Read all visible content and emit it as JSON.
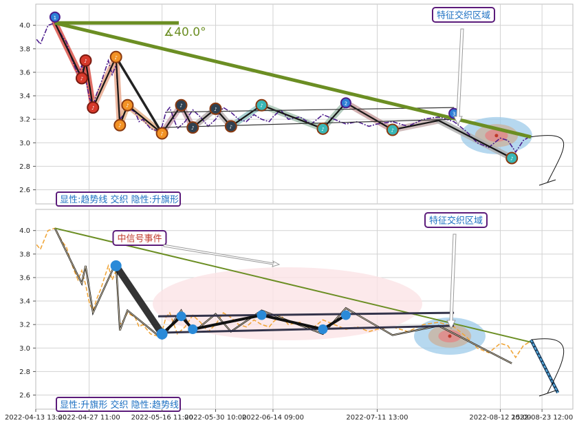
{
  "chart_data": [
    {
      "type": "line",
      "ylim": [
        2.48,
        4.18
      ],
      "yticks": [
        2.6,
        2.8,
        3.0,
        3.2,
        3.4,
        3.6,
        3.8,
        4.0
      ],
      "price_series": [
        [
          "2022-04-13 18:00",
          3.88
        ],
        [
          "2022-04-14 18:00",
          3.84
        ],
        [
          "2022-04-15 18:00",
          3.92
        ],
        [
          "2022-04-16 18:00",
          4.0
        ],
        [
          "2022-04-18 13:00",
          4.02
        ],
        [
          "2022-04-19 13:00",
          3.96
        ],
        [
          "2022-04-20 13:00",
          3.9
        ],
        [
          "2022-04-21 13:00",
          3.86
        ],
        [
          "2022-04-22 13:00",
          3.75
        ],
        [
          "2022-04-23 13:00",
          3.66
        ],
        [
          "2022-04-24 13:00",
          3.58
        ],
        [
          "2022-04-25 13:00",
          3.66
        ],
        [
          "2022-04-26 13:00",
          3.54
        ],
        [
          "2022-04-27 13:00",
          3.38
        ],
        [
          "2022-04-28 11:00",
          3.32
        ],
        [
          "2022-04-29 11:00",
          3.42
        ],
        [
          "2022-04-30 11:00",
          3.5
        ],
        [
          "2022-05-01 11:00",
          3.6
        ],
        [
          "2022-05-02 11:00",
          3.7
        ],
        [
          "2022-05-03 11:00",
          3.58
        ],
        [
          "2022-05-04 11:00",
          3.66
        ],
        [
          "2022-05-05 11:00",
          3.2
        ],
        [
          "2022-05-06 11:00",
          3.24
        ],
        [
          "2022-05-07 11:00",
          3.3
        ],
        [
          "2022-05-09 11:00",
          3.26
        ],
        [
          "2022-05-10 11:00",
          3.18
        ],
        [
          "2022-05-11 11:00",
          3.2
        ],
        [
          "2022-05-12 11:00",
          3.16
        ],
        [
          "2022-05-13 11:00",
          3.12
        ],
        [
          "2022-05-15 11:00",
          3.1
        ],
        [
          "2022-05-16 11:00",
          3.14
        ],
        [
          "2022-05-17 11:00",
          3.26
        ],
        [
          "2022-05-18 11:00",
          3.3
        ],
        [
          "2022-05-20 11:00",
          3.12
        ],
        [
          "2022-05-22 11:00",
          3.18
        ],
        [
          "2022-05-24 11:00",
          3.28
        ],
        [
          "2022-05-26 11:00",
          3.22
        ],
        [
          "2022-05-28 11:00",
          3.14
        ],
        [
          "2022-05-30 10:00",
          3.2
        ],
        [
          "2022-06-01 10:00",
          3.3
        ],
        [
          "2022-06-03 10:00",
          3.26
        ],
        [
          "2022-06-05 10:00",
          3.2
        ],
        [
          "2022-06-07 10:00",
          3.18
        ],
        [
          "2022-06-09 10:00",
          3.24
        ],
        [
          "2022-06-11 10:00",
          3.2
        ],
        [
          "2022-06-13 09:00",
          3.18
        ],
        [
          "2022-06-14 09:00",
          3.22
        ],
        [
          "2022-06-16 09:00",
          3.28
        ],
        [
          "2022-06-18 09:00",
          3.2
        ],
        [
          "2022-06-21 09:00",
          3.22
        ],
        [
          "2022-06-24 09:00",
          3.16
        ],
        [
          "2022-06-27 09:00",
          3.24
        ],
        [
          "2022-06-30 09:00",
          3.2
        ],
        [
          "2022-07-03 09:00",
          3.16
        ],
        [
          "2022-07-06 09:00",
          3.18
        ],
        [
          "2022-07-09 09:00",
          3.14
        ],
        [
          "2022-07-11 13:00",
          3.16
        ],
        [
          "2022-07-15 13:00",
          3.18
        ],
        [
          "2022-07-19 13:00",
          3.14
        ],
        [
          "2022-07-23 13:00",
          3.2
        ],
        [
          "2022-07-27 13:00",
          3.22
        ],
        [
          "2022-07-31 13:00",
          3.18
        ],
        [
          "2022-08-03 15:00",
          3.1
        ],
        [
          "2022-08-06 15:00",
          3.0
        ],
        [
          "2022-08-09 15:00",
          2.96
        ],
        [
          "2022-08-12 15:00",
          3.04
        ],
        [
          "2022-08-14 15:00",
          3.02
        ],
        [
          "2022-08-16 15:00",
          2.92
        ],
        [
          "2022-08-18 15:00",
          3.02
        ],
        [
          "2022-08-20 15:00",
          3.06
        ]
      ],
      "trend_segments": [
        [
          [
            "2022-04-18 13:00",
            4.02
          ],
          [
            "2022-04-25 13:00",
            3.55
          ],
          [
            "2022-04-26 13:00",
            3.7
          ],
          [
            "2022-04-28 11:00",
            3.3
          ],
          [
            "2022-05-04 11:00",
            3.73
          ],
          [
            "2022-05-05 11:00",
            3.15
          ],
          [
            "2022-05-07 11:00",
            3.32
          ],
          [
            "2022-05-16 11:00",
            3.08
          ],
          [
            "2022-05-21 11:00",
            3.32
          ],
          [
            "2022-05-24 11:00",
            3.13
          ],
          [
            "2022-05-30 10:00",
            3.29
          ],
          [
            "2022-06-03 10:00",
            3.14
          ],
          [
            "2022-06-11 10:00",
            3.32
          ],
          [
            "2022-06-27 09:00",
            3.12
          ],
          [
            "2022-07-03 09:00",
            3.34
          ],
          [
            "2022-07-15 13:00",
            3.11
          ],
          [
            "2022-07-27 13:00",
            3.19
          ],
          [
            "2022-08-15 15:00",
            2.87
          ]
        ]
      ],
      "signal_markers": [
        {
          "label": "1",
          "date": "2022-04-18 13:00",
          "value": 4.07,
          "kind": "ring"
        },
        {
          "label": "2",
          "date": "2022-07-03 09:00",
          "value": 3.34,
          "kind": "ring"
        },
        {
          "label": "3",
          "date": "2022-07-31 13:00",
          "value": 3.25,
          "kind": "ring"
        },
        {
          "label": "♪",
          "date": "2022-04-25 13:00",
          "value": 3.55,
          "kind": "red"
        },
        {
          "label": "♪",
          "date": "2022-04-26 13:00",
          "value": 3.7,
          "kind": "red"
        },
        {
          "label": "♪",
          "date": "2022-04-28 11:00",
          "value": 3.3,
          "kind": "red"
        },
        {
          "label": "♪",
          "date": "2022-05-04 11:00",
          "value": 3.73,
          "kind": "orange"
        },
        {
          "label": "♪",
          "date": "2022-05-05 11:00",
          "value": 3.15,
          "kind": "orange"
        },
        {
          "label": "♪",
          "date": "2022-05-07 11:00",
          "value": 3.32,
          "kind": "orange"
        },
        {
          "label": "♪",
          "date": "2022-05-16 11:00",
          "value": 3.08,
          "kind": "orange"
        },
        {
          "label": "♪",
          "date": "2022-05-21 11:00",
          "value": 3.32,
          "kind": "dark"
        },
        {
          "label": "♪",
          "date": "2022-05-24 11:00",
          "value": 3.13,
          "kind": "dark"
        },
        {
          "label": "♪",
          "date": "2022-05-30 10:00",
          "value": 3.29,
          "kind": "dark"
        },
        {
          "label": "♪",
          "date": "2022-06-03 10:00",
          "value": 3.14,
          "kind": "dark"
        },
        {
          "label": "♪",
          "date": "2022-06-11 10:00",
          "value": 3.32,
          "kind": "teal"
        },
        {
          "label": "♪",
          "date": "2022-06-27 09:00",
          "value": 3.12,
          "kind": "teal"
        },
        {
          "label": "♪",
          "date": "2022-07-15 13:00",
          "value": 3.11,
          "kind": "teal"
        },
        {
          "label": "♪",
          "date": "2022-08-15 15:00",
          "value": 2.87,
          "kind": "teal"
        }
      ],
      "trendline_main": [
        [
          "2022-04-18 13:00",
          4.02
        ],
        [
          "2022-08-20 15:00",
          3.05
        ]
      ],
      "angle_label": "∡40.0°",
      "flag_lines": [
        [
          [
            "2022-05-17 11:00",
            3.26
          ],
          [
            "2022-07-31 13:00",
            3.3
          ]
        ],
        [
          [
            "2022-05-16 11:00",
            3.13
          ],
          [
            "2022-07-31 13:00",
            3.2
          ]
        ]
      ],
      "feature_zone": {
        "date": "2022-08-11 15:00",
        "value": 3.12
      },
      "callout": "特征交织区域",
      "caption": "显性:趋势线 交织 隐性:升旗形"
    },
    {
      "type": "line",
      "ylim": [
        2.48,
        4.18
      ],
      "yticks": [
        2.6,
        2.8,
        3.0,
        3.2,
        3.4,
        3.6,
        3.8,
        4.0
      ],
      "xticks": [
        "2022-04-13 13:00",
        "2022-04-27 11:00",
        "2022-05-16 11:00",
        "2022-05-30 10:00",
        "2022-06-14 09:00",
        "2022-07-11 13:00",
        "2022-08-12 15:00",
        "2022-08-23 12:00"
      ],
      "flag_pole": [
        [
          "2022-05-04 11:00",
          3.7
        ],
        [
          "2022-05-16 11:00",
          3.12
        ]
      ],
      "flag_points": [
        [
          "2022-05-16 11:00",
          3.12
        ],
        [
          "2022-05-21 11:00",
          3.27
        ],
        [
          "2022-05-24 11:00",
          3.16
        ],
        [
          "2022-06-11 10:00",
          3.28
        ],
        [
          "2022-06-27 09:00",
          3.16
        ],
        [
          "2022-07-03 09:00",
          3.28
        ]
      ],
      "flag_upper": [
        [
          "2022-05-15 11:00",
          3.27
        ],
        [
          "2022-07-31 13:00",
          3.3
        ]
      ],
      "flag_lower": [
        [
          "2022-05-15 11:00",
          3.13
        ],
        [
          "2022-07-31 13:00",
          3.19
        ]
      ],
      "forecast": [
        [
          "2022-08-20 15:00",
          3.07
        ],
        [
          "2022-08-27 15:00",
          2.62
        ]
      ],
      "callout_signal": "中信号事件",
      "callout_zone": "特征交织区域",
      "caption": "显性:升旗形 交织 隐性:趋势线"
    }
  ]
}
